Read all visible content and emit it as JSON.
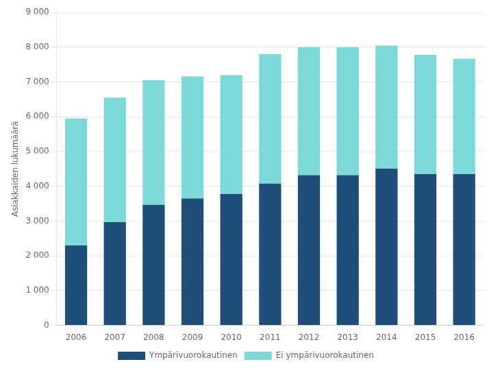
{
  "chart_data": {
    "type": "bar",
    "stacked": true,
    "categories": [
      "2006",
      "2007",
      "2008",
      "2009",
      "2010",
      "2011",
      "2012",
      "2013",
      "2014",
      "2015",
      "2016"
    ],
    "series": [
      {
        "name": "Ympärivuorokautinen",
        "color": "#1F4E79",
        "values": [
          2300,
          2970,
          3470,
          3650,
          3780,
          4080,
          4320,
          4320,
          4510,
          4350,
          4350
        ]
      },
      {
        "name": "Ei ympärivuorokautinen",
        "color": "#7DD8D8",
        "values": [
          3650,
          3580,
          3580,
          3510,
          3420,
          3720,
          3680,
          3680,
          3540,
          3430,
          3320
        ]
      }
    ],
    "ylabel": "Asiakkaiden lukumäärä",
    "ylim": [
      0,
      9000
    ],
    "yticks": [
      0,
      {
        "value": 1000,
        "label": "1 000"
      },
      {
        "value": 2000,
        "label": "2 000"
      },
      {
        "value": 3000,
        "label": "3 000"
      },
      {
        "value": 4000,
        "label": "4 000"
      },
      {
        "value": 5000,
        "label": "5 000"
      },
      {
        "value": 6000,
        "label": "6 000"
      },
      {
        "value": 7000,
        "label": "7 000"
      },
      {
        "value": 8000,
        "label": "8 000"
      },
      {
        "value": 9000,
        "label": "9 000"
      }
    ],
    "grid": true,
    "legend": "bottom"
  }
}
